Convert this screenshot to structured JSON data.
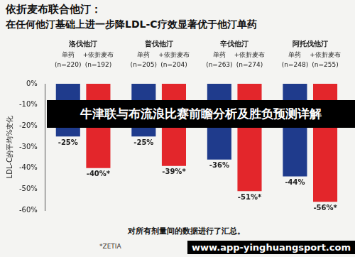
{
  "chart_data": {
    "type": "bar",
    "title": "依折麦布联合他汀：",
    "subtitle": "在任何他汀基础上进一步降LDL-C疗效显著优于他汀单药",
    "y_label": "LDL-C的平均%变化",
    "categories": [
      "洛伐他汀",
      "普伐他汀",
      "辛伐他汀",
      "阿托伐他汀"
    ],
    "series": [
      {
        "name": "单药",
        "color": "#1f3b8c",
        "values": [
          -25,
          -25,
          -36,
          -44
        ],
        "value_labels": [
          "-25%",
          "-25%",
          "-36%",
          "-44%"
        ],
        "n_labels": [
          "(n=220)",
          "(n=205)",
          "(n=263)",
          "(n=248)"
        ]
      },
      {
        "name": "+依折麦布",
        "color": "#e3262b",
        "values": [
          -40,
          -39,
          -51,
          -56
        ],
        "value_labels": [
          "-40%*",
          "-39%*",
          "-51%*",
          "-56%*"
        ],
        "n_labels": [
          "(n=192)",
          "(n=204)",
          "(n=274)",
          "(n=255)"
        ]
      }
    ],
    "ylim": [
      -60,
      0
    ],
    "yticks": [
      {
        "value": 0,
        "label": "0%"
      },
      {
        "value": -10,
        "label": "-10%"
      },
      {
        "value": -20,
        "label": "-20%"
      },
      {
        "value": -30,
        "label": "-30%"
      },
      {
        "value": -40,
        "label": "-40%"
      },
      {
        "value": -50,
        "label": "-50%"
      },
      {
        "value": -60,
        "label": "-60%"
      }
    ],
    "grid": false,
    "data_labels": true,
    "tick_labels": "y",
    "notes": [
      "对所有剂量间的数据进行了汇总。",
      "*ZETIA"
    ],
    "banner": "牛津联与布流浪比赛前瞻分析及胜负预测详解",
    "watermark": "www.app-yinghuangsport.com"
  }
}
